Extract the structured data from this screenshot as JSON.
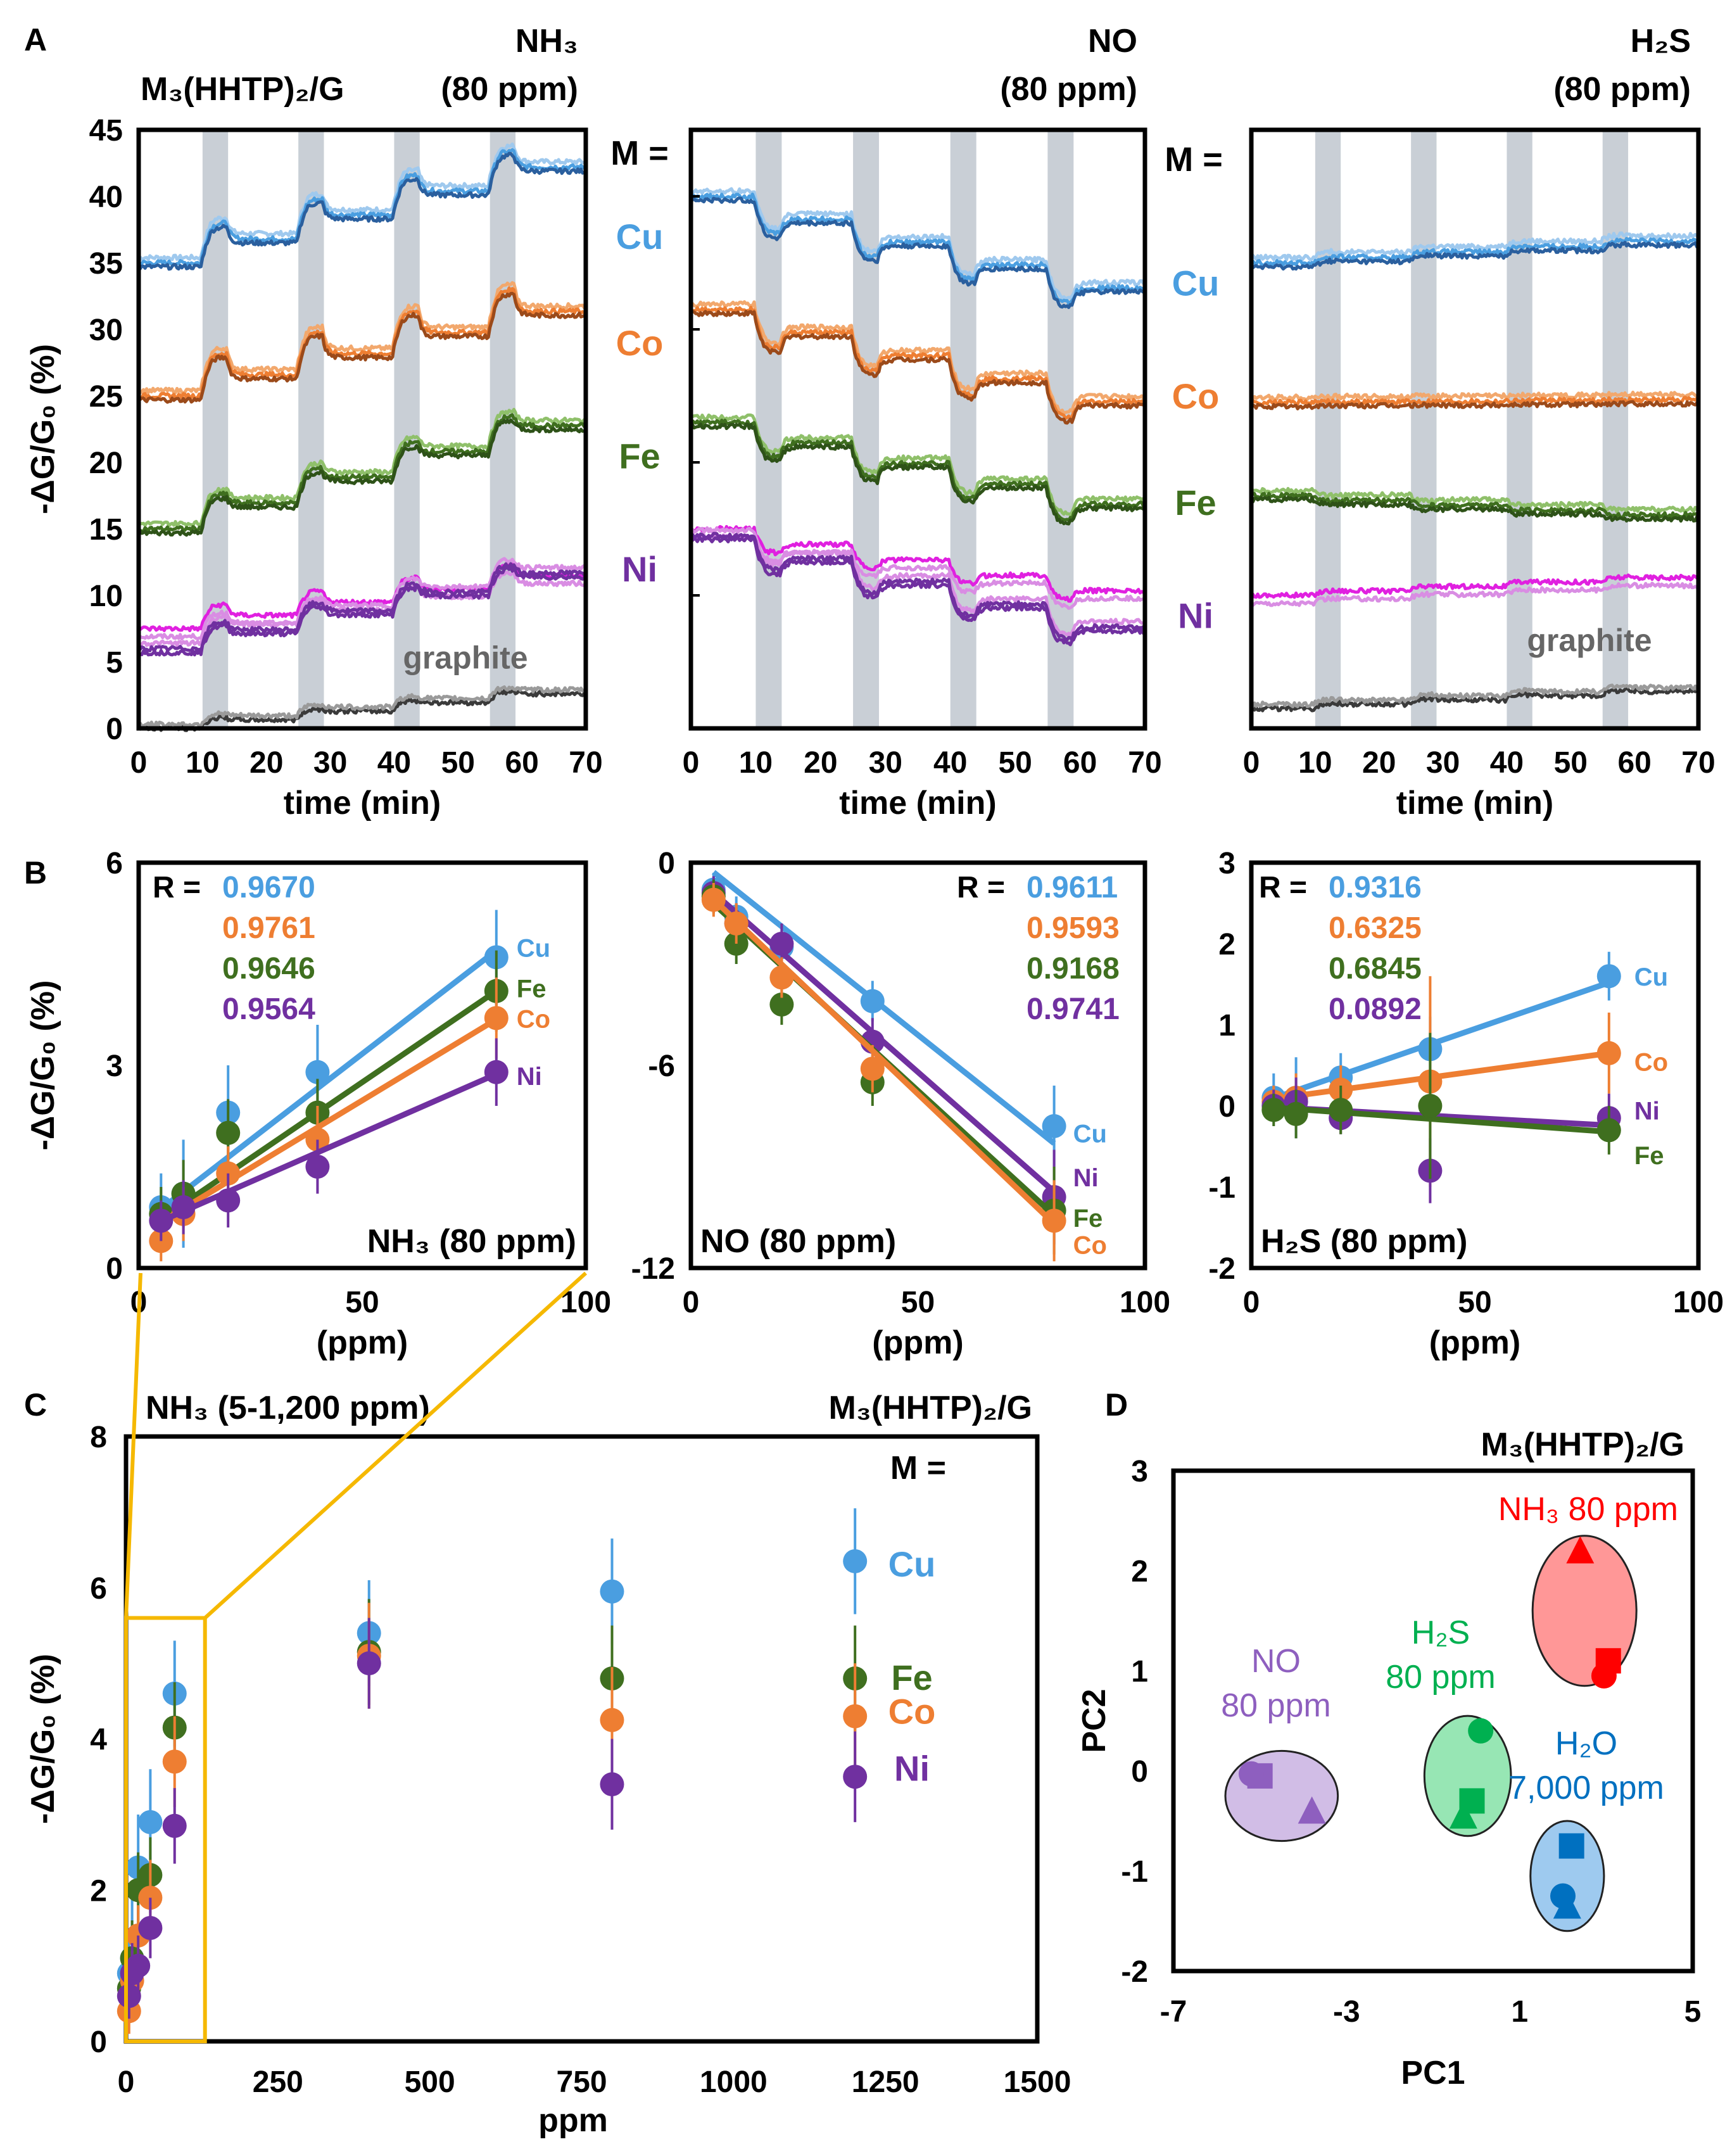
{
  "colors": {
    "Cu": "#4a9ee0",
    "Cu_dark": "#2a5f9e",
    "Cu_light": "#9fc9ee",
    "Co": "#ee7e32",
    "Co_dark": "#9b4a1a",
    "Co_light": "#f2a86d",
    "Fe": "#3f6f1f",
    "Fe_dark": "#2e5218",
    "Fe_light": "#8fc06a",
    "Ni": "#7030a0",
    "Ni_magenta": "#e020e0",
    "Ni_light": "#d98de3",
    "graphite": "#3a3a3a",
    "graphite_light": "#9a9a9a",
    "exposure": "#c9cfd6",
    "zoom": "#f5b800",
    "NH3": "#ff0000",
    "NO": "#8e5fbf",
    "H2S": "#00b050",
    "H2O": "#0070c0"
  },
  "panels": {
    "A_label": "A",
    "B_label": "B",
    "C_label": "C",
    "D_label": "D"
  },
  "chart_data": [
    {
      "id": "A1",
      "type": "line",
      "material_label": "M₃(HHTP)₂/G",
      "analyte": "NH₃",
      "conc": "(80 ppm)",
      "xlabel": "time (min)",
      "ylabel": "-ΔG/G₀ (%)",
      "xlim": [
        0,
        70
      ],
      "ylim": [
        0,
        45
      ],
      "xticks": [
        0,
        10,
        20,
        30,
        40,
        50,
        60,
        70
      ],
      "yticks": [
        0,
        5,
        10,
        15,
        20,
        25,
        30,
        35,
        40,
        45
      ],
      "exposures": [
        [
          10,
          14
        ],
        [
          25,
          29
        ],
        [
          40,
          44
        ],
        [
          55,
          59
        ]
      ],
      "m_label": "M =",
      "series_labels": [
        {
          "name": "Cu",
          "y": 37
        },
        {
          "name": "Co",
          "y": 29
        },
        {
          "name": "Fe",
          "y": 20.5
        },
        {
          "name": "Ni",
          "y": 12
        }
      ],
      "graphite_label": "graphite",
      "series": [
        {
          "name": "Cu",
          "base": 35,
          "step": 3.0,
          "drift": 0.15,
          "recover": 0.45
        },
        {
          "name": "Co",
          "base": 25,
          "step": 3.2,
          "drift": 0.15,
          "recover": 0.55
        },
        {
          "name": "Fe",
          "base": 15,
          "step": 2.6,
          "drift": 0.25,
          "recover": 0.35
        },
        {
          "name": "Ni_magenta",
          "base": 7.5,
          "step": 1.8,
          "drift": 0.1,
          "recover": 0.5
        },
        {
          "name": "Ni",
          "base": 6,
          "step": 2.0,
          "drift": 0.12,
          "recover": 0.35
        },
        {
          "name": "graphite",
          "base": 0,
          "step": 0.8,
          "drift": 0.05,
          "recover": 0.25
        }
      ]
    },
    {
      "id": "A2",
      "type": "line",
      "analyte": "NO",
      "conc": "(80 ppm)",
      "xlabel": "time (min)",
      "xlim": [
        0,
        70
      ],
      "ylim": [
        0,
        45
      ],
      "xticks": [
        0,
        10,
        20,
        30,
        40,
        50,
        60,
        70
      ],
      "exposures": [
        [
          10,
          14
        ],
        [
          25,
          29
        ],
        [
          40,
          44
        ],
        [
          55,
          59
        ]
      ],
      "series": [
        {
          "name": "Cu",
          "base": 40,
          "step": -2.8,
          "drift": 0.1,
          "recover": 0.35
        },
        {
          "name": "Co",
          "base": 31.5,
          "step": -2.9,
          "drift": 0.15,
          "recover": 0.35
        },
        {
          "name": "Fe",
          "base": 23,
          "step": -2.6,
          "drift": 0.15,
          "recover": 0.35
        },
        {
          "name": "Ni_magenta",
          "base": 15,
          "step": -1.8,
          "drift": 0.1,
          "recover": 0.3
        },
        {
          "name": "Ni",
          "base": 14.5,
          "step": -2.6,
          "drift": 0.1,
          "recover": 0.3
        }
      ]
    },
    {
      "id": "A3",
      "type": "line",
      "analyte": "H₂S",
      "conc": "(80 ppm)",
      "xlabel": "time (min)",
      "xlim": [
        0,
        70
      ],
      "ylim": [
        0,
        45
      ],
      "xticks": [
        0,
        10,
        20,
        30,
        40,
        50,
        60,
        70
      ],
      "exposures": [
        [
          10,
          14
        ],
        [
          25,
          29
        ],
        [
          40,
          44
        ],
        [
          55,
          59
        ]
      ],
      "m_label": "M =",
      "series_labels": [
        {
          "name": "Cu",
          "y": 33.5
        },
        {
          "name": "Co",
          "y": 25
        },
        {
          "name": "Fe",
          "y": 17
        },
        {
          "name": "Ni",
          "y": 8.5
        }
      ],
      "graphite_label": "graphite",
      "series": [
        {
          "name": "Cu",
          "base": 35,
          "step": 0.45,
          "drift": 0.05,
          "recover": 0.2
        },
        {
          "name": "Co",
          "base": 24.5,
          "step": 0.05,
          "drift": 0.0,
          "recover": 0.0
        },
        {
          "name": "Fe",
          "base": 17.5,
          "step": -0.4,
          "drift": 0.0,
          "recover": 0.1
        },
        {
          "name": "Ni_magenta",
          "base": 10,
          "step": 0.35,
          "drift": 0.02,
          "recover": 0.1
        },
        {
          "name": "graphite",
          "base": 1.5,
          "step": 0.4,
          "drift": 0.0,
          "recover": 0.2
        }
      ]
    },
    {
      "id": "B1",
      "type": "scatter",
      "ylabel": "-ΔG/G₀ (%)",
      "xlabel": "(ppm)",
      "xlim": [
        0,
        100
      ],
      "ylim": [
        0,
        6
      ],
      "xticks": [
        0,
        50,
        100
      ],
      "yticks": [
        0,
        3,
        6
      ],
      "label": "NH₃ (80 ppm)",
      "r_prefix": "R =",
      "r_values": [
        "0.9670",
        "0.9761",
        "0.9646",
        "0.9564"
      ],
      "x": [
        5,
        10,
        20,
        40,
        80
      ],
      "series": [
        {
          "name": "Cu",
          "values": [
            0.9,
            1.1,
            2.3,
            2.9,
            4.6
          ],
          "err": [
            0.5,
            0.8,
            0.7,
            0.7,
            0.7
          ],
          "fit": [
            0.62,
            0.051
          ]
        },
        {
          "name": "Fe",
          "values": [
            0.8,
            1.1,
            2.0,
            2.3,
            4.1
          ],
          "err": [
            0.4,
            0.5,
            0.5,
            0.5,
            0.6
          ],
          "fit": [
            0.5,
            0.045
          ]
        },
        {
          "name": "Co",
          "values": [
            0.4,
            0.8,
            1.4,
            1.9,
            3.7
          ],
          "err": [
            0.3,
            0.4,
            0.4,
            0.5,
            0.6
          ],
          "fit": [
            0.48,
            0.04
          ]
        },
        {
          "name": "Ni",
          "values": [
            0.7,
            0.9,
            1.0,
            1.5,
            2.9
          ],
          "err": [
            0.3,
            0.4,
            0.4,
            0.4,
            0.5
          ],
          "fit": [
            0.55,
            0.029
          ]
        }
      ]
    },
    {
      "id": "B2",
      "type": "scatter",
      "xlabel": "(ppm)",
      "xlim": [
        0,
        100
      ],
      "ylim": [
        -12,
        0
      ],
      "xticks": [
        0,
        50,
        100
      ],
      "yticks": [
        0,
        -6,
        -12
      ],
      "label": "NO (80 ppm)",
      "r_prefix": "R =",
      "r_values": [
        "0.9611",
        "0.9593",
        "0.9168",
        "0.9741"
      ],
      "x": [
        5,
        10,
        20,
        40,
        80
      ],
      "series": [
        {
          "name": "Cu",
          "values": [
            -0.8,
            -1.6,
            -2.5,
            -4.1,
            -7.8
          ],
          "err": [
            0.5,
            0.6,
            0.6,
            0.6,
            1.2
          ],
          "fit": [
            0.25,
            -0.107
          ]
        },
        {
          "name": "Ni",
          "values": [
            -0.9,
            -1.8,
            -2.4,
            -5.3,
            -9.9
          ],
          "err": [
            0.5,
            0.6,
            0.6,
            0.7,
            1.4
          ],
          "fit": [
            -0.3,
            -0.118
          ]
        },
        {
          "name": "Fe",
          "values": [
            -1.0,
            -2.4,
            -4.2,
            -6.5,
            -10.3
          ],
          "err": [
            0.5,
            0.6,
            0.6,
            0.7,
            1.3
          ],
          "fit": [
            -0.6,
            -0.123
          ]
        },
        {
          "name": "Co",
          "values": [
            -1.1,
            -1.8,
            -3.4,
            -6.1,
            -10.6
          ],
          "err": [
            0.5,
            0.6,
            0.6,
            0.7,
            1.2
          ],
          "fit": [
            -0.45,
            -0.128
          ]
        }
      ],
      "point_labels": [
        "Cu",
        "Ni",
        "Fe",
        "Co"
      ]
    },
    {
      "id": "B3",
      "type": "scatter",
      "xlabel": "(ppm)",
      "xlim": [
        0,
        100
      ],
      "ylim": [
        -2,
        3
      ],
      "xticks": [
        0,
        50,
        100
      ],
      "yticks": [
        3,
        2,
        1,
        0,
        -1,
        -2
      ],
      "label": "H₂S (80 ppm)",
      "r_prefix": "R =",
      "r_values": [
        "0.9316",
        "0.6325",
        "0.6845",
        "0.0892"
      ],
      "x": [
        5,
        10,
        20,
        40,
        80
      ],
      "series": [
        {
          "name": "Cu",
          "values": [
            0.1,
            0.1,
            0.35,
            0.7,
            1.6
          ],
          "err": [
            0.3,
            0.5,
            0.3,
            0.4,
            0.3
          ],
          "fit": [
            0.0,
            0.019
          ]
        },
        {
          "name": "Co",
          "values": [
            0.05,
            0.1,
            0.2,
            0.3,
            0.65
          ],
          "err": [
            0.2,
            0.3,
            0.3,
            1.3,
            0.5
          ],
          "fit": [
            0.05,
            0.0075
          ]
        },
        {
          "name": "Ni",
          "values": [
            0.0,
            0.05,
            -0.15,
            -0.8,
            -0.15
          ],
          "err": [
            0.2,
            0.3,
            0.2,
            0.4,
            0.3
          ],
          "fit": [
            0.0,
            -0.003
          ]
        },
        {
          "name": "Fe",
          "values": [
            -0.05,
            -0.1,
            -0.05,
            0.0,
            -0.3
          ],
          "err": [
            0.2,
            0.3,
            0.3,
            0.9,
            0.3
          ],
          "fit": [
            0.0,
            -0.004
          ]
        }
      ],
      "point_labels": [
        "Cu",
        "Co",
        "Ni",
        "Fe"
      ]
    },
    {
      "id": "C",
      "type": "scatter",
      "title": "NH₃ (5-1,200 ppm)",
      "material_label": "M₃(HHTP)₂/G",
      "m_label": "M =",
      "xlabel": "ppm",
      "ylabel": "-ΔG/G₀ (%)",
      "xlim": [
        0,
        1500
      ],
      "ylim": [
        0,
        8
      ],
      "xticks": [
        0,
        250,
        500,
        750,
        1000,
        1250,
        1500
      ],
      "yticks": [
        0,
        2,
        4,
        6,
        8
      ],
      "x": [
        5,
        10,
        20,
        40,
        80,
        400,
        800,
        1200
      ],
      "series": [
        {
          "name": "Cu",
          "values": [
            0.9,
            1.1,
            2.3,
            2.9,
            4.6,
            5.4,
            5.95,
            6.35
          ],
          "err": [
            0.5,
            0.8,
            0.7,
            0.7,
            0.7,
            0.7,
            0.7,
            0.7
          ]
        },
        {
          "name": "Fe",
          "values": [
            0.7,
            1.1,
            2.0,
            2.2,
            4.15,
            5.15,
            4.8,
            4.8
          ],
          "err": [
            0.4,
            0.5,
            0.5,
            0.5,
            0.6,
            0.7,
            0.7,
            0.7
          ]
        },
        {
          "name": "Co",
          "values": [
            0.4,
            0.8,
            1.4,
            1.9,
            3.7,
            5.1,
            4.25,
            4.3
          ],
          "err": [
            0.3,
            0.4,
            0.4,
            0.5,
            0.6,
            0.7,
            0.7,
            0.7
          ]
        },
        {
          "name": "Ni",
          "values": [
            0.6,
            0.9,
            1.0,
            1.5,
            2.85,
            5.0,
            3.4,
            3.5
          ],
          "err": [
            0.3,
            0.4,
            0.4,
            0.4,
            0.5,
            0.6,
            0.6,
            0.6
          ]
        }
      ],
      "series_labels": [
        "Cu",
        "Fe",
        "Co",
        "Ni"
      ],
      "zoom_box": {
        "x": [
          0,
          130
        ],
        "y": [
          0,
          5.6
        ]
      }
    },
    {
      "id": "D",
      "type": "scatter",
      "title": "M₃(HHTP)₂/G",
      "xlabel": "PC1",
      "ylabel": "PC2",
      "xlim": [
        -7,
        5
      ],
      "ylim": [
        -2,
        3
      ],
      "xticks": [
        -7,
        -3,
        1,
        5
      ],
      "yticks": [
        3,
        2,
        1,
        0,
        -1,
        -2
      ],
      "groups": [
        {
          "name": "NH₃ 80 ppm",
          "color_key": "NH3",
          "fill": "#ff6060",
          "ellipse": [
            2.5,
            1.6,
            1.2,
            0.75
          ],
          "points": [
            {
              "x": 2.4,
              "y": 2.2,
              "shape": "triangle"
            },
            {
              "x": 3.05,
              "y": 1.1,
              "shape": "square"
            },
            {
              "x": 2.95,
              "y": 0.95,
              "shape": "circle"
            }
          ]
        },
        {
          "name": "NO",
          "sub": "80 ppm",
          "color_key": "NO",
          "fill": "#b99ad8",
          "ellipse": [
            -4.5,
            -0.25,
            1.3,
            0.45
          ],
          "points": [
            {
              "x": -5.0,
              "y": -0.05,
              "shape": "square"
            },
            {
              "x": -5.2,
              "y": -0.03,
              "shape": "circle"
            },
            {
              "x": -3.8,
              "y": -0.4,
              "shape": "triangle"
            }
          ]
        },
        {
          "name": "H₂S",
          "sub": "80 ppm",
          "color_key": "H2S",
          "fill": "#5fd88c",
          "ellipse": [
            -0.2,
            -0.05,
            1.0,
            0.6
          ],
          "points": [
            {
              "x": 0.1,
              "y": 0.4,
              "shape": "circle"
            },
            {
              "x": -0.1,
              "y": -0.3,
              "shape": "square"
            },
            {
              "x": -0.3,
              "y": -0.45,
              "shape": "triangle"
            }
          ]
        },
        {
          "name": "H₂O",
          "sub": "7,000 ppm",
          "color_key": "H2O",
          "fill": "#6aaee6",
          "ellipse": [
            2.1,
            -1.05,
            0.85,
            0.55
          ],
          "points": [
            {
              "x": 2.2,
              "y": -0.75,
              "shape": "square"
            },
            {
              "x": 2.0,
              "y": -1.25,
              "shape": "circle"
            },
            {
              "x": 2.1,
              "y": -1.35,
              "shape": "triangle"
            }
          ]
        }
      ]
    }
  ]
}
